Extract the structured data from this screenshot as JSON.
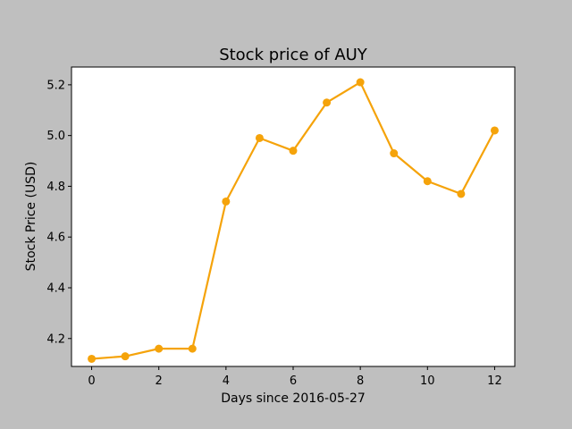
{
  "colors": {
    "figure_background": "#bfbfbf",
    "plot_background": "#ffffff",
    "line": "#f5a30a"
  },
  "chart_data": {
    "type": "line",
    "title": "Stock price of AUY",
    "xlabel": "Days since 2016-05-27",
    "ylabel": "Stock Price (USD)",
    "x": [
      0,
      1,
      2,
      3,
      4,
      5,
      6,
      7,
      8,
      9,
      10,
      11,
      12
    ],
    "series": [
      {
        "values": [
          4.12,
          4.13,
          4.16,
          4.16,
          4.74,
          4.99,
          4.94,
          5.13,
          5.21,
          4.93,
          4.82,
          4.77,
          5.02
        ]
      }
    ],
    "xlim": [
      -0.6,
      12.6
    ],
    "ylim": [
      4.09,
      5.27
    ],
    "xticks": [
      "0",
      "2",
      "4",
      "6",
      "8",
      "10",
      "12"
    ],
    "yticks": [
      "4.2",
      "4.4",
      "4.6",
      "4.8",
      "5.0",
      "5.2"
    ],
    "grid": false,
    "markers": true
  }
}
